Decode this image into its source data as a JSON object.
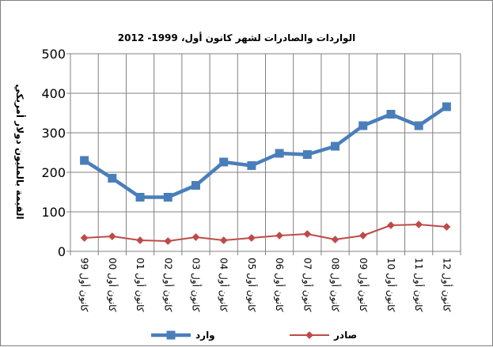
{
  "chart_data": {
    "type": "line",
    "title": "الواردات والصادرات لشهر كانون أول، 1999- 2012",
    "ylabel": "القيمة بالمليون دولار أمريكي",
    "xlabel": "",
    "ylim": [
      0,
      500
    ],
    "yticks": [
      0,
      100,
      200,
      300,
      400,
      500
    ],
    "grid": true,
    "legend_position": "bottom",
    "categories": [
      "كانون أول 99",
      "كانون أول 00",
      "كانون أول 01",
      "كانون أول 02",
      "كانون أول 03",
      "كانون أول 04",
      "كانون أول 05",
      "كانون أول 06",
      "كانون أول 07",
      "كانون أول 08",
      "كانون أول 09",
      "كانون أول 10",
      "كانون أول 11",
      "كانون أول 12"
    ],
    "series": [
      {
        "name": "وارد",
        "color": "#4a7ebb",
        "marker": "square",
        "values": [
          230,
          185,
          137,
          137,
          167,
          226,
          217,
          248,
          245,
          266,
          318,
          347,
          318,
          366
        ]
      },
      {
        "name": "صادر",
        "color": "#be4b48",
        "marker": "diamond",
        "values": [
          34,
          38,
          28,
          26,
          36,
          28,
          34,
          40,
          44,
          30,
          40,
          66,
          68,
          62
        ]
      }
    ]
  }
}
